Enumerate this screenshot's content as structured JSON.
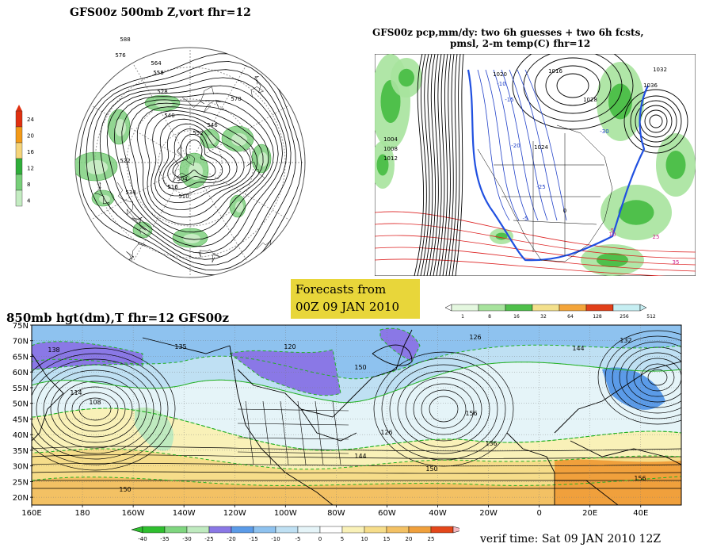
{
  "panel1": {
    "title": "GFS00z  500mb Z,vort    fhr=12",
    "colorbar_labels": [
      "24",
      "20",
      "16",
      "12",
      "8",
      "4"
    ],
    "colorbar_colors": [
      "#e03010",
      "#f39a18",
      "#f5d47a",
      "#2fae3a",
      "#77cf79",
      "#c4ecc2"
    ],
    "contour_labels": [
      "588",
      "576",
      "564",
      "558",
      "528",
      "540",
      "570",
      "546",
      "552",
      "534",
      "522",
      "516",
      "510",
      "504"
    ]
  },
  "panel2": {
    "title_line1": "GFS00z pcp,mm/dy: two 6h guesses + two 6h fcsts,",
    "title_line2": "pmsl, 2-m temp(C)  fhr=12",
    "contour_labels": [
      "1004",
      "1008",
      "1012",
      "1016",
      "1020",
      "1024",
      "1028",
      "1032",
      "1036",
      "-10",
      "-15",
      "-20",
      "-25",
      "-30",
      "-5",
      "0",
      "5",
      "10",
      "25",
      "35"
    ]
  },
  "forecast_box": {
    "line1": "Forecasts from",
    "line2": "00Z 09 JAN 2010"
  },
  "precip_scale": {
    "labels": [
      "1",
      "8",
      "16",
      "32",
      "64",
      "128",
      "256",
      "512"
    ],
    "colors": [
      "#e4f7df",
      "#a7e39d",
      "#4fc04b",
      "#f3e08c",
      "#f4a53a",
      "#e2401a",
      "#c6eef2"
    ]
  },
  "panel3": {
    "title": "850mb hgt(dm),T  fhr=12 GFS00z",
    "lat_labels": [
      "75N",
      "70N",
      "65N",
      "60N",
      "55N",
      "50N",
      "45N",
      "40N",
      "35N",
      "30N",
      "25N",
      "20N"
    ],
    "lon_labels": [
      "160E",
      "180",
      "160W",
      "140W",
      "120W",
      "100W",
      "80W",
      "60W",
      "40W",
      "20W",
      "0",
      "20E",
      "40E"
    ],
    "contour_labels": [
      "138",
      "135",
      "120",
      "114",
      "108",
      "126",
      "132",
      "144",
      "150",
      "156"
    ],
    "temp_scale_labels": [
      "-40",
      "-35",
      "-30",
      "-25",
      "-20",
      "-15",
      "-10",
      "-5",
      "0",
      "5",
      "10",
      "15",
      "20",
      "25"
    ],
    "temp_scale_colors": [
      "#2fbf2f",
      "#7fd67f",
      "#bfeabf",
      "#8a78e6",
      "#5b9be8",
      "#8ec2ef",
      "#bfe0f3",
      "#e5f4f8",
      "#ffffff",
      "#f9f1b8",
      "#f6dd8a",
      "#f3c164",
      "#f0a03c",
      "#e4471a"
    ]
  },
  "verif_time": "verif time: Sat 09 JAN 2010 12Z"
}
